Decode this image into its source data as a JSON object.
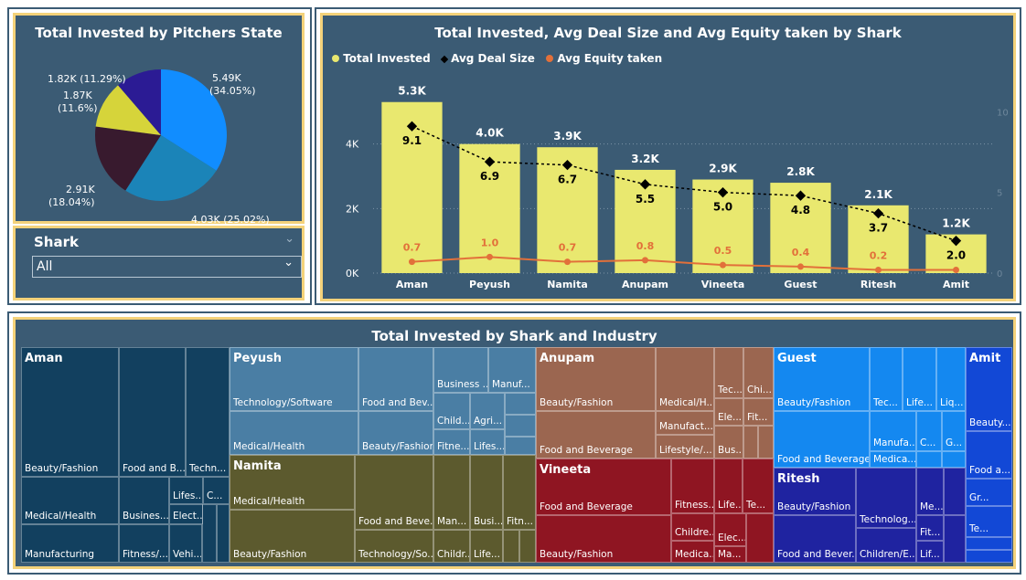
{
  "pie": {
    "title": "Total Invested by Pitchers State",
    "colors": [
      "#118dff",
      "#1b84b8",
      "#381a2e",
      "#d6d43a",
      "#2b1b94"
    ],
    "chart_data": {
      "type": "pie",
      "title": "Total Invested by Pitchers State",
      "values": [
        5.49,
        4.03,
        2.91,
        1.87,
        1.82
      ],
      "labels": [
        "5.49K (34.05%)",
        "4.03K (25.02%)",
        "2.91K (18.04%)",
        "1.87K (11.6%)",
        "1.82K (11.29%)"
      ]
    },
    "label_texts": {
      "l0a": "5.49K",
      "l0b": "(34.05%)",
      "l1": "4.03K (25.02%)",
      "l2a": "2.91K",
      "l2b": "(18.04%)",
      "l3a": "1.87K",
      "l3b": "(11.6%)",
      "l4": "1.82K (11.29%)"
    }
  },
  "slicer": {
    "label": "Shark",
    "value": "All"
  },
  "combo": {
    "title": "Total Invested, Avg Deal Size and Avg Equity taken by Shark",
    "legend": [
      "Total Invested",
      "Avg Deal Size",
      "Avg Equity taken"
    ],
    "colors": {
      "bar": "#e9e86f",
      "deal": "#000000",
      "equity": "#e2703a"
    },
    "chart_data": {
      "type": "bar",
      "categories": [
        "Aman",
        "Peyush",
        "Namita",
        "Anupam",
        "Vineeta",
        "Guest",
        "Ritesh",
        "Amit"
      ],
      "series": [
        {
          "name": "Total Invested",
          "values": [
            5.3,
            4.0,
            3.9,
            3.2,
            2.9,
            2.8,
            2.1,
            1.2
          ],
          "labels": [
            "5.3K",
            "4.0K",
            "3.9K",
            "3.2K",
            "2.9K",
            "2.8K",
            "2.1K",
            "1.2K"
          ]
        },
        {
          "name": "Avg Deal Size",
          "values": [
            9.1,
            6.9,
            6.7,
            5.5,
            5.0,
            4.8,
            3.7,
            2.0
          ]
        },
        {
          "name": "Avg Equity taken",
          "values": [
            0.7,
            1.0,
            0.7,
            0.8,
            0.5,
            0.4,
            0.2,
            0.2
          ],
          "labels": [
            "0.7",
            "1.0",
            "0.7",
            "0.8",
            "0.5",
            "0.4",
            "0.2",
            ""
          ]
        }
      ],
      "y_ticks": [
        "0K",
        "2K",
        "4K"
      ],
      "y_range": [
        0,
        6
      ],
      "y2_ticks": [
        "0",
        "5",
        "10"
      ],
      "y2_range": [
        0,
        12
      ],
      "y_unit": "K"
    }
  },
  "treemap": {
    "title": "Total Invested by Shark and Industry",
    "groups": [
      {
        "name": "Aman",
        "color": "#12405f",
        "cells": [
          "Beauty/Fashion",
          "Food and B...",
          "Techn...",
          "Medical/Health",
          "Busines...",
          "Lifes...",
          "C...",
          "Elect...",
          "Manufacturing",
          "Fitness/...",
          "Vehi...",
          "",
          "",
          ""
        ]
      },
      {
        "name": "Peyush",
        "color": "#4a7ea4",
        "cells": [
          "Technology/Software",
          "Medical/Health",
          "Food and Bev...",
          "Beauty/Fashion",
          "Business ...",
          "Manuf...",
          "Child...",
          "Agri...",
          "Fitne...",
          "Lifes...",
          "",
          "",
          ""
        ]
      },
      {
        "name": "Namita",
        "color": "#5c5a2e",
        "cells": [
          "Medical/Health",
          "Beauty/Fashion",
          "Food and Beve...",
          "Technology/So...",
          "Man...",
          "Busi...",
          "Fitn...",
          "Childr...",
          "Life...",
          "",
          ""
        ]
      },
      {
        "name": "Anupam",
        "color": "#9b6650",
        "cells": [
          "Beauty/Fashion",
          "Food and Beverage",
          "Medical/H...",
          "Manufact...",
          "Lifestyle/...",
          "Tec...",
          "Chi...",
          "Ele...",
          "Fit...",
          "Bus...",
          "",
          ""
        ]
      },
      {
        "name": "Vineeta",
        "color": "#8f1522",
        "cells": [
          "Food and Beverage",
          "Beauty/Fashion",
          "Fitness...",
          "Life...",
          "Te...",
          "Childre...",
          "Elec...",
          "Medica...",
          "Ma...",
          ""
        ]
      },
      {
        "name": "Guest",
        "color": "#1488f0",
        "cells": [
          "Beauty/Fashion",
          "Food and Beverage",
          "Tec...",
          "Life...",
          "Liq...",
          "Manufa...",
          "C...",
          "G...",
          "Medica...",
          "",
          ""
        ]
      },
      {
        "name": "Ritesh",
        "color": "#1f23a0",
        "cells": [
          "Beauty/Fashion",
          "Food and Bever...",
          "Technolog...",
          "Children/E...",
          "Me...",
          "Fit...",
          "Lif...",
          "",
          ""
        ]
      },
      {
        "name": "Amit",
        "color": "#1248d6",
        "cells": [
          "Beauty...",
          "Food a...",
          "Gr...",
          "Te...",
          "",
          ""
        ]
      }
    ]
  }
}
